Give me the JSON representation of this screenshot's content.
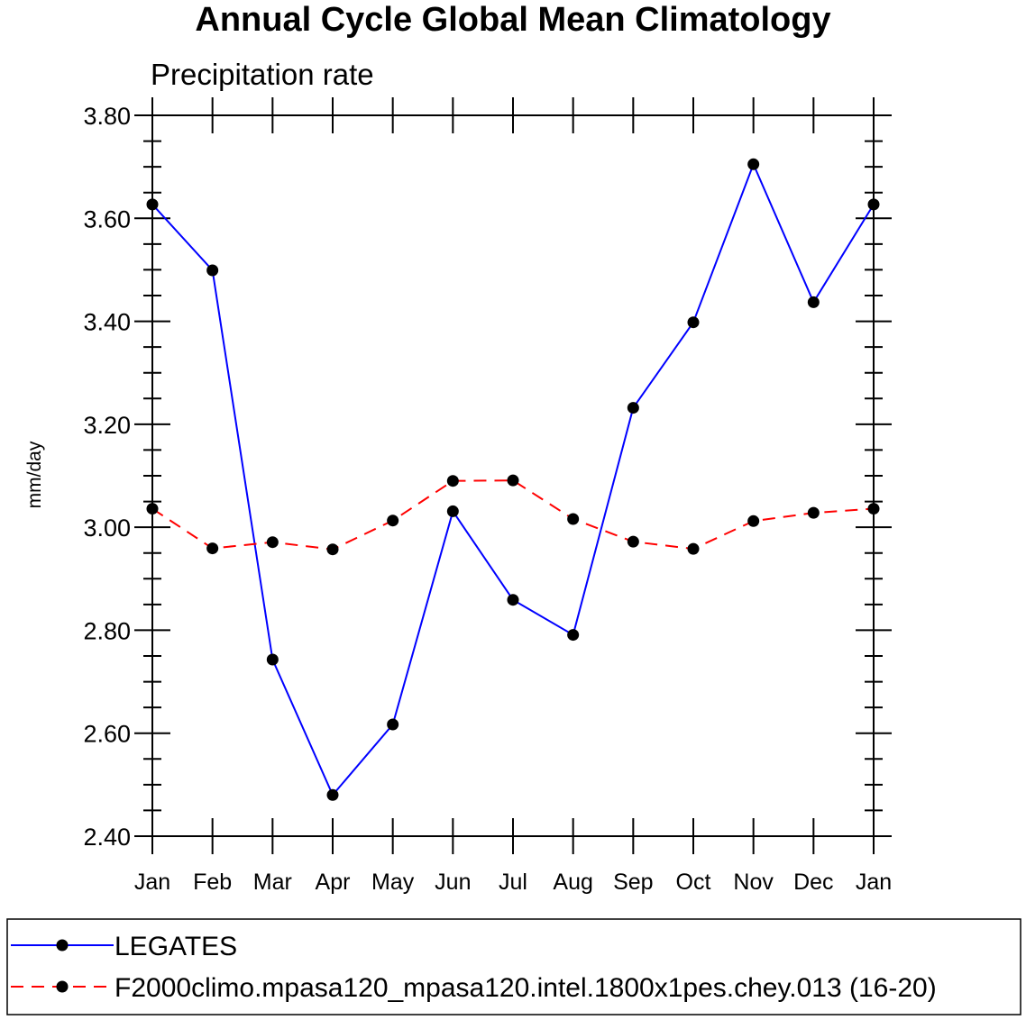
{
  "chart_data": {
    "type": "line",
    "title": "Annual Cycle Global Mean Climatology",
    "subtitle": "Precipitation rate",
    "xlabel": "",
    "ylabel": "mm/day",
    "categories": [
      "Jan",
      "Feb",
      "Mar",
      "Apr",
      "May",
      "Jun",
      "Jul",
      "Aug",
      "Sep",
      "Oct",
      "Nov",
      "Dec",
      "Jan"
    ],
    "ylim": [
      2.4,
      3.8
    ],
    "yticks": [
      "2.40",
      "2.60",
      "2.80",
      "3.00",
      "3.20",
      "3.40",
      "3.60",
      "3.80"
    ],
    "grid": false,
    "legend_position": "bottom",
    "series": [
      {
        "name": "LEGATES",
        "color": "#0000ff",
        "dash": "solid",
        "marker": "filled-circle",
        "values": [
          3.627,
          3.499,
          2.743,
          2.48,
          2.617,
          3.031,
          2.859,
          2.791,
          3.232,
          3.398,
          3.705,
          3.437,
          3.627
        ]
      },
      {
        "name": "F2000climo.mpasa120_mpasa120.intel.1800x1pes.chey.013 (16-20)",
        "color": "#ff0000",
        "dash": "dashed",
        "marker": "filled-circle",
        "values": [
          3.036,
          2.959,
          2.971,
          2.957,
          3.013,
          3.09,
          3.091,
          3.016,
          2.972,
          2.958,
          3.012,
          3.028,
          3.036
        ]
      }
    ]
  }
}
